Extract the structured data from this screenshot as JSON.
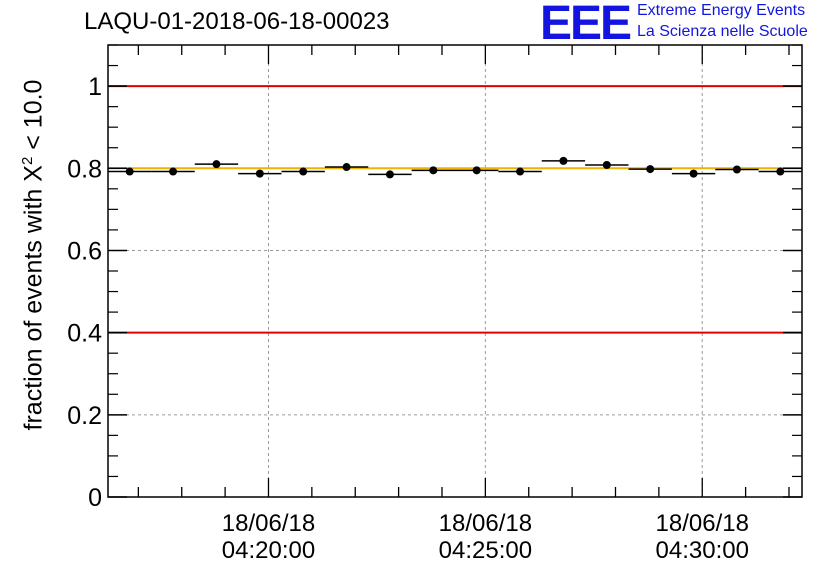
{
  "chart_data": {
    "type": "scatter",
    "title": "LAQU-01-2018-06-18-00023",
    "ylabel_prefix": "fraction of events with ",
    "ylabel_chi": "X",
    "ylabel_exp": "2",
    "ylabel_suffix": " < 10.0",
    "xlabel": "",
    "ylim": [
      0,
      1.1
    ],
    "yticks": [
      "0",
      "0.2",
      "0.4",
      "0.6",
      "0.8",
      "1"
    ],
    "ytick_values": [
      0,
      0.2,
      0.4,
      0.6,
      0.8,
      1.0
    ],
    "xlim_minutes": [
      16.3,
      32.3
    ],
    "xticks": [
      {
        "minute": 20,
        "date": "18/06/18",
        "time": "04:20:00"
      },
      {
        "minute": 25,
        "date": "18/06/18",
        "time": "04:25:00"
      },
      {
        "minute": 30,
        "date": "18/06/18",
        "time": "04:30:00"
      }
    ],
    "series": [
      {
        "name": "fraction",
        "bin_width_minutes": 1.0,
        "x_minutes": [
          16.8,
          17.8,
          18.8,
          19.8,
          20.8,
          21.8,
          22.8,
          23.8,
          24.8,
          25.8,
          26.8,
          27.8,
          28.8,
          29.8,
          30.8,
          31.8
        ],
        "values": [
          0.792,
          0.792,
          0.81,
          0.787,
          0.792,
          0.803,
          0.785,
          0.795,
          0.795,
          0.792,
          0.818,
          0.808,
          0.798,
          0.787,
          0.797,
          0.792
        ]
      }
    ],
    "reference_lines": [
      {
        "value": 1.0,
        "color": "#e00000"
      },
      {
        "value": 0.4,
        "color": "#e00000"
      },
      {
        "value": 0.8,
        "color": "#f0b400"
      }
    ],
    "grid": true
  },
  "logo": {
    "mark": "EEE",
    "line1": "Extreme Energy Events",
    "line2": "La Scienza nelle Scuole"
  },
  "colors": {
    "threshold_line": "#e00000",
    "mean_line": "#f0b400",
    "logo": "#1414e0"
  }
}
